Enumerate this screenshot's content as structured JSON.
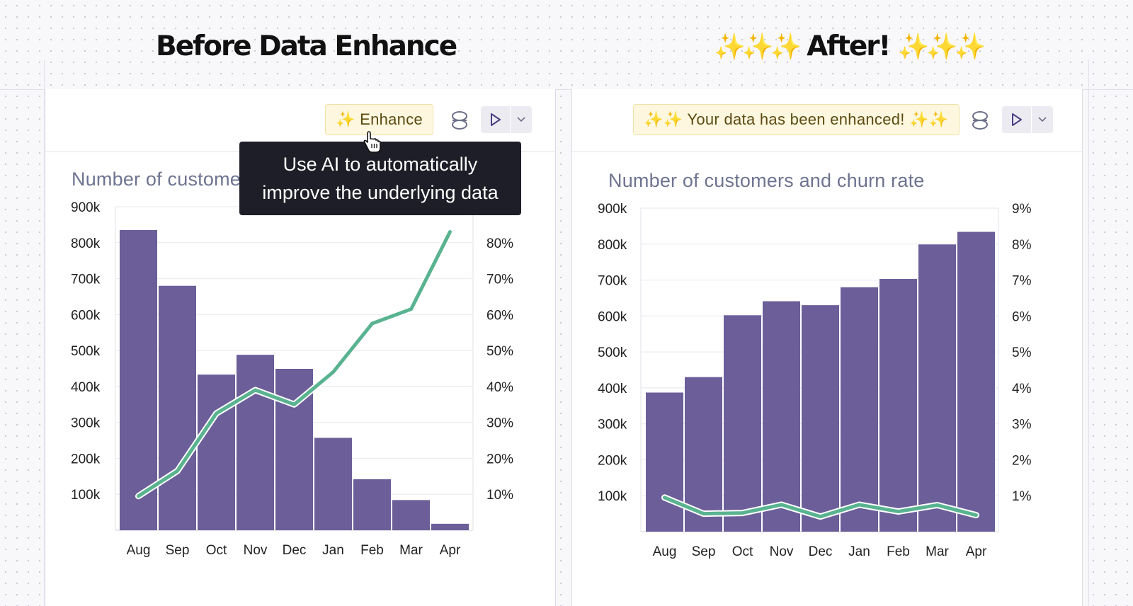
{
  "headings": {
    "before": "Before Data Enhance",
    "after_sparkles_left": "✨✨✨",
    "after_text": "After!",
    "after_sparkles_right": "✨✨✨"
  },
  "left_panel": {
    "enhance_label": "✨ Enhance",
    "chart_title": "Number of customers and churn rate",
    "tooltip_line1": "Use AI to automatically",
    "tooltip_line2": "improve the underlying data"
  },
  "right_panel": {
    "enhanced_label": "✨✨ Your data has been enhanced! ✨✨",
    "chart_title": "Number of customers and churn rate"
  },
  "icons": [
    "database-icon",
    "play-icon",
    "chevron-down-icon",
    "pointer-cursor-icon"
  ],
  "colors": {
    "bar": "#6b5e99",
    "line": "#59b391",
    "tooltip_bg": "#1d1e27",
    "enhance_bg": "#fdf7df"
  },
  "chart_data": [
    {
      "type": "bar",
      "title": "Number of customers and churn rate",
      "categories": [
        "Aug",
        "Sep",
        "Oct",
        "Nov",
        "Dec",
        "Jan",
        "Feb",
        "Mar",
        "Apr"
      ],
      "series": [
        {
          "axis": "left",
          "type": "bar",
          "values": [
            835000,
            680000,
            433000,
            488000,
            449000,
            257000,
            142000,
            84000,
            18000
          ]
        },
        {
          "axis": "right",
          "type": "line",
          "values": [
            9.5,
            16.5,
            32.5,
            39,
            35,
            44,
            57.5,
            61.5,
            83
          ]
        }
      ],
      "y_left": {
        "ylim": [
          0,
          900000
        ],
        "ticks": [
          "100k",
          "200k",
          "300k",
          "400k",
          "500k",
          "600k",
          "700k",
          "800k",
          "900k"
        ]
      },
      "y_right": {
        "ylim": [
          0,
          90
        ],
        "ticks": [
          "10%",
          "20%",
          "30%",
          "40%",
          "50%",
          "60%",
          "70%",
          "80%",
          "90%"
        ]
      },
      "grid": true
    },
    {
      "type": "bar",
      "title": "Number of customers and churn rate",
      "categories": [
        "Aug",
        "Sep",
        "Oct",
        "Nov",
        "Dec",
        "Jan",
        "Feb",
        "Mar",
        "Apr"
      ],
      "series": [
        {
          "axis": "left",
          "type": "bar",
          "values": [
            387000,
            430000,
            602000,
            641000,
            630000,
            680000,
            703000,
            799000,
            834000
          ]
        },
        {
          "axis": "right",
          "type": "line",
          "values": [
            0.95,
            0.5,
            0.52,
            0.75,
            0.42,
            0.75,
            0.56,
            0.74,
            0.46
          ]
        }
      ],
      "y_left": {
        "ylim": [
          0,
          900000
        ],
        "ticks": [
          "100k",
          "200k",
          "300k",
          "400k",
          "500k",
          "600k",
          "700k",
          "800k",
          "900k"
        ]
      },
      "y_right": {
        "ylim": [
          0,
          9
        ],
        "ticks": [
          "1%",
          "2%",
          "3%",
          "4%",
          "5%",
          "6%",
          "7%",
          "8%",
          "9%"
        ]
      },
      "grid": true
    }
  ]
}
